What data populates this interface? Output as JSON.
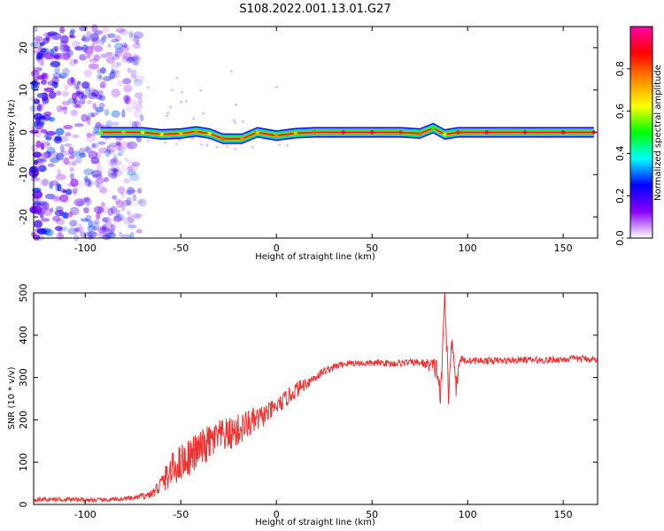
{
  "figure": {
    "title": "S108.2022.001.13.01.G27"
  },
  "chart_data": [
    {
      "type": "heatmap",
      "title": "S108.2022.001.13.01.G27",
      "xlabel": "Height of straight line (km)",
      "ylabel": "Frequency (Hz)",
      "xlim": [
        -127,
        168
      ],
      "ylim": [
        -25,
        25
      ],
      "xticks": [
        -100,
        -50,
        0,
        50,
        100,
        150
      ],
      "yticks": [
        -20,
        -10,
        0,
        10,
        20
      ],
      "colorbar": {
        "label": "Normalized spectral amplitude",
        "range": [
          0,
          1
        ],
        "ticks": [
          0.0,
          0.2,
          0.4,
          0.6,
          0.8
        ],
        "tick_labels": [
          "0.0",
          "0.2",
          "0.4",
          "0.6",
          "0.8"
        ],
        "colormap": [
          "#ffffff",
          "#8800ff",
          "#0000ff",
          "#00ffff",
          "#00ff00",
          "#ffff00",
          "#ff8800",
          "#ff0000",
          "#ff00aa"
        ]
      },
      "noise_region": {
        "x_range": [
          -127,
          -70
        ],
        "y_range": [
          -25,
          25
        ],
        "amplitude": [
          0.05,
          0.3
        ]
      },
      "ridge": [
        {
          "x": -92,
          "y": 0.0,
          "amp": 0.55
        },
        {
          "x": -80,
          "y": 0.0,
          "amp": 0.7
        },
        {
          "x": -70,
          "y": 0.0,
          "amp": 0.6
        },
        {
          "x": -60,
          "y": -0.5,
          "amp": 0.65
        },
        {
          "x": -50,
          "y": -0.3,
          "amp": 0.7
        },
        {
          "x": -42,
          "y": 0.2,
          "amp": 0.75
        },
        {
          "x": -35,
          "y": -0.3,
          "amp": 0.65
        },
        {
          "x": -28,
          "y": -1.5,
          "amp": 0.8
        },
        {
          "x": -18,
          "y": -1.5,
          "amp": 0.75
        },
        {
          "x": -10,
          "y": 0.0,
          "amp": 0.7
        },
        {
          "x": 0,
          "y": -0.8,
          "amp": 0.75
        },
        {
          "x": 10,
          "y": -0.2,
          "amp": 0.7
        },
        {
          "x": 20,
          "y": 0.0,
          "amp": 0.8
        },
        {
          "x": 35,
          "y": 0.0,
          "amp": 0.9
        },
        {
          "x": 50,
          "y": 0.0,
          "amp": 0.9
        },
        {
          "x": 65,
          "y": 0.0,
          "amp": 0.85
        },
        {
          "x": 75,
          "y": -0.3,
          "amp": 0.8
        },
        {
          "x": 82,
          "y": 1.0,
          "amp": 0.5
        },
        {
          "x": 88,
          "y": -0.5,
          "amp": 0.6
        },
        {
          "x": 95,
          "y": 0.0,
          "amp": 0.85
        },
        {
          "x": 110,
          "y": 0.0,
          "amp": 0.9
        },
        {
          "x": 130,
          "y": 0.0,
          "amp": 0.9
        },
        {
          "x": 150,
          "y": 0.0,
          "amp": 0.9
        },
        {
          "x": 166,
          "y": 0.0,
          "amp": 0.9
        }
      ]
    },
    {
      "type": "line",
      "xlabel": "Height of straight line (km)",
      "ylabel": "SNR (10 * v/v)",
      "xlim": [
        -127,
        168
      ],
      "ylim": [
        0,
        500
      ],
      "xticks": [
        -100,
        -50,
        0,
        50,
        100,
        150
      ],
      "yticks": [
        0,
        100,
        200,
        300,
        400,
        500
      ],
      "series": [
        {
          "color": "#ee3333",
          "x": [
            -127,
            -110,
            -90,
            -75,
            -65,
            -60,
            -55,
            -50,
            -45,
            -40,
            -35,
            -30,
            -25,
            -20,
            -15,
            -10,
            -5,
            0,
            5,
            10,
            15,
            20,
            25,
            30,
            35,
            40,
            45,
            50,
            55,
            60,
            65,
            70,
            75,
            80,
            84,
            86,
            88,
            90,
            92,
            94,
            96,
            98,
            100,
            110,
            120,
            130,
            140,
            150,
            160,
            168
          ],
          "y": [
            12,
            12,
            10,
            15,
            25,
            50,
            80,
            100,
            115,
            130,
            145,
            160,
            165,
            175,
            190,
            200,
            215,
            230,
            250,
            270,
            285,
            300,
            315,
            325,
            332,
            335,
            333,
            334,
            335,
            333,
            334,
            336,
            335,
            330,
            320,
            250,
            500,
            260,
            400,
            280,
            345,
            340,
            340,
            340,
            340,
            342,
            341,
            343,
            345,
            342
          ],
          "noise": [
            5,
            5,
            5,
            5,
            10,
            25,
            40,
            45,
            45,
            45,
            45,
            40,
            40,
            40,
            35,
            30,
            25,
            20,
            20,
            20,
            15,
            12,
            10,
            8,
            8,
            8,
            8,
            8,
            8,
            8,
            8,
            8,
            8,
            15,
            30,
            40,
            0,
            40,
            30,
            30,
            10,
            8,
            8,
            8,
            8,
            8,
            8,
            8,
            8,
            8
          ]
        }
      ]
    }
  ]
}
